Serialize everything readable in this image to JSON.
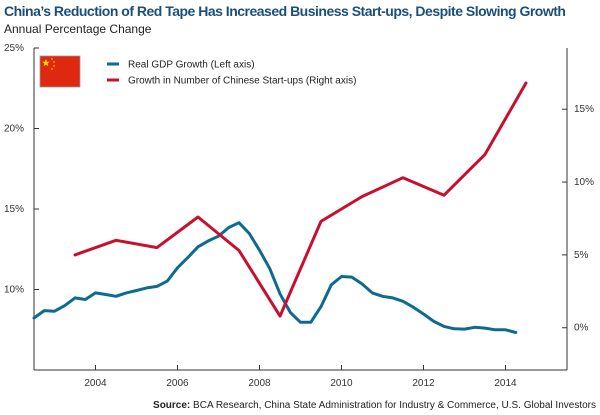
{
  "chart_data": {
    "type": "line",
    "title": "China’s Reduction of Red Tape Has Increased Business Start-ups, Despite Slowing Growth",
    "subtitle": "Annual Percentage Change",
    "source_label": "Source:",
    "source_text": "BCA Research, China State Administration for Industry & Commerce, U.S. Global Investors",
    "xlim": [
      2002.5,
      2015.5
    ],
    "x_ticks": [
      2004,
      2006,
      2008,
      2010,
      2012,
      2014
    ],
    "x_tick_labels": [
      "2004",
      "2006",
      "2008",
      "2010",
      "2012",
      "2014"
    ],
    "y_left": {
      "lim": [
        5,
        25
      ],
      "ticks": [
        10,
        15,
        20,
        25
      ],
      "tick_labels": [
        "10%",
        "15%",
        "20%",
        "25%"
      ]
    },
    "y_right": {
      "lim": [
        -2.9,
        19.2
      ],
      "ticks": [
        0,
        5,
        10,
        15
      ],
      "tick_labels": [
        "0%",
        "5%",
        "10%",
        "15%"
      ]
    },
    "grid": false,
    "legend_placement": "top-left",
    "legend_icon": "china-flag",
    "series": [
      {
        "name": "Real GDP Growth (Left axis)",
        "axis": "left",
        "color": "#0e6a8f",
        "x_start": 2002.5,
        "x_step": 0.25,
        "values": [
          8.23,
          8.69,
          8.65,
          9.0,
          9.48,
          9.38,
          9.79,
          9.69,
          9.58,
          9.79,
          9.94,
          10.1,
          10.19,
          10.52,
          11.35,
          11.98,
          12.65,
          13.02,
          13.31,
          13.85,
          14.15,
          13.48,
          12.44,
          11.29,
          9.73,
          8.58,
          7.96,
          7.96,
          8.94,
          10.29,
          10.81,
          10.77,
          10.35,
          9.79,
          9.58,
          9.48,
          9.27,
          8.9,
          8.48,
          8.02,
          7.71,
          7.56,
          7.54,
          7.65,
          7.6,
          7.5,
          7.5,
          7.33
        ]
      },
      {
        "name": "Growth in Number of Chinese Start-ups (Right axis)",
        "axis": "right",
        "color": "#c8102e",
        "x": [
          2003.5,
          2004.5,
          2005.5,
          2006.5,
          2007.5,
          2008.5,
          2009.5,
          2010.5,
          2011.5,
          2012.5,
          2013.5,
          2014.5
        ],
        "values": [
          5.0,
          6.0,
          5.5,
          7.6,
          5.3,
          0.8,
          7.3,
          9.0,
          10.3,
          9.1,
          11.9,
          16.8
        ]
      }
    ]
  }
}
